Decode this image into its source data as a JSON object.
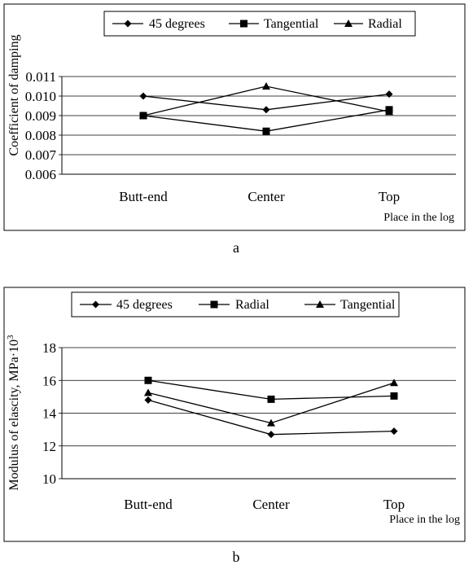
{
  "chart_data": [
    {
      "type": "line",
      "panel_label": "a",
      "categories": [
        "Butt-end",
        "Center",
        "Top"
      ],
      "xlabel": "Place in the log",
      "ylabel": "Coefficient of damping",
      "ylim": [
        0.006,
        0.011
      ],
      "yticks": [
        "0.006",
        "0.007",
        "0.008",
        "0.009",
        "0.010",
        "0.011"
      ],
      "grid": true,
      "legend_position": "top",
      "series": [
        {
          "name": "45 degrees",
          "marker": "diamond",
          "values": [
            0.01,
            0.0093,
            0.0101
          ]
        },
        {
          "name": "Tangential",
          "marker": "square",
          "values": [
            0.009,
            0.0082,
            0.0093
          ]
        },
        {
          "name": "Radial",
          "marker": "triangle",
          "values": [
            0.009,
            0.0105,
            0.0092
          ]
        }
      ]
    },
    {
      "type": "line",
      "panel_label": "b",
      "categories": [
        "Butt-end",
        "Center",
        "Top"
      ],
      "xlabel": "Place in the log",
      "ylabel": "Modulus of elascity, MPa·10",
      "ylabel_superscript": "3",
      "ylim": [
        10,
        18
      ],
      "yticks": [
        "10",
        "12",
        "14",
        "16",
        "18"
      ],
      "grid": true,
      "legend_position": "top",
      "series": [
        {
          "name": "45 degrees",
          "marker": "diamond",
          "values": [
            14.8,
            12.7,
            12.9
          ]
        },
        {
          "name": "Radial",
          "marker": "square",
          "values": [
            16.0,
            14.85,
            15.05
          ]
        },
        {
          "name": "Tangential",
          "marker": "triangle",
          "values": [
            15.25,
            13.4,
            15.85
          ]
        }
      ]
    }
  ]
}
